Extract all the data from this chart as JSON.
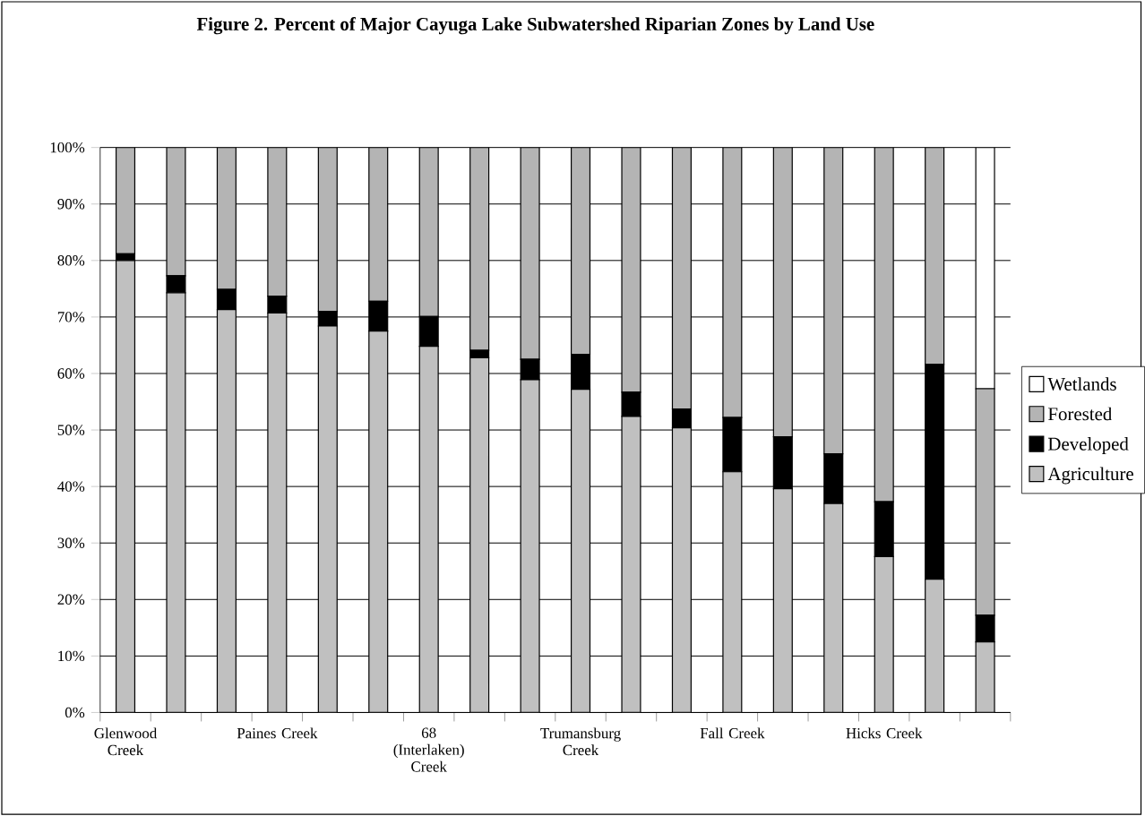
{
  "chart_data": {
    "type": "bar",
    "stacked": true,
    "title": "Figure 2. Percent of Major Cayuga Lake Subwatershed Riparian Zones by Land Use",
    "categories": [
      "Glenwood Creek",
      null,
      null,
      "Paines Creek",
      null,
      null,
      "68 (Interlaken) Creek",
      null,
      null,
      "Trumansburg Creek",
      null,
      null,
      "Fall Creek",
      null,
      null,
      "Hicks Creek",
      null,
      null
    ],
    "series": [
      {
        "name": "Agriculture",
        "color": "#c0c0c0",
        "values": [
          80,
          74.3,
          71.3,
          70.7,
          68.4,
          67.5,
          64.8,
          62.8,
          58.9,
          57.2,
          52.4,
          50.4,
          42.6,
          39.6,
          37.0,
          27.6,
          23.6,
          12.5
        ]
      },
      {
        "name": "Developed",
        "color": "#000000",
        "values": [
          1.2,
          3.0,
          3.6,
          3.0,
          2.6,
          5.3,
          5.3,
          1.3,
          3.6,
          6.2,
          4.3,
          3.3,
          9.6,
          9.2,
          8.8,
          9.7,
          38.0,
          4.7
        ]
      },
      {
        "name": "Forested",
        "color": "#b4b4b4",
        "values": [
          18.8,
          22.7,
          25.1,
          26.3,
          29.0,
          27.2,
          29.9,
          35.9,
          37.5,
          36.6,
          43.3,
          46.3,
          47.8,
          51.2,
          54.2,
          62.7,
          38.4,
          40.1
        ]
      },
      {
        "name": "Wetlands",
        "color": "#ffffff",
        "values": [
          0,
          0,
          0,
          0,
          0,
          0,
          0,
          0,
          0,
          0,
          0,
          0,
          0,
          0,
          0,
          0,
          0,
          42.7
        ]
      }
    ],
    "ylim": [
      0,
      100
    ],
    "yticks": [
      {
        "value": 0,
        "label": "0%"
      },
      {
        "value": 10,
        "label": "10%"
      },
      {
        "value": 20,
        "label": "20%"
      },
      {
        "value": 30,
        "label": "30%"
      },
      {
        "value": 40,
        "label": "40%"
      },
      {
        "value": 50,
        "label": "50%"
      },
      {
        "value": 60,
        "label": "60%"
      },
      {
        "value": 70,
        "label": "70%"
      },
      {
        "value": 80,
        "label": "80%"
      },
      {
        "value": 90,
        "label": "90%"
      },
      {
        "value": 100,
        "label": "100%"
      }
    ],
    "grid": "y",
    "legend": "right"
  }
}
